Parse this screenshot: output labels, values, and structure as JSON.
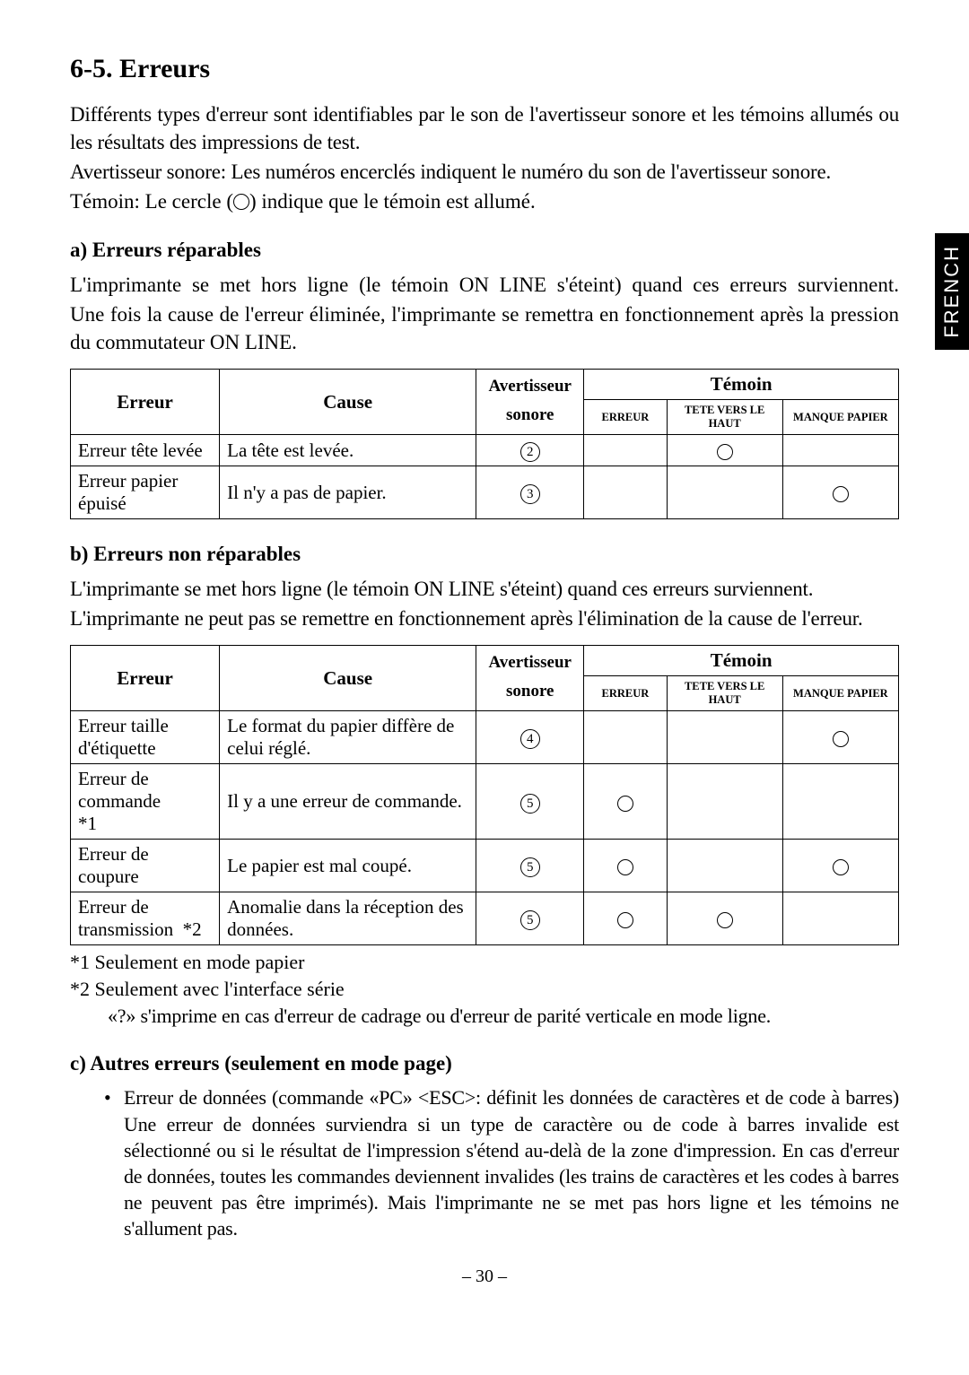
{
  "side_tab": "FRENCH",
  "section_title": "6-5. Erreurs",
  "intro": {
    "p1": "Différents types d'erreur sont identifiables par le son de l'avertisseur sonore et les témoins allumés ou les résultats des impressions de test.",
    "p2": "Avertisseur sonore: Les numéros encerclés indiquent le numéro du son de l'avertisseur sonore.",
    "p3_prefix": "Témoin: Le cercle (",
    "p3_suffix": ") indique que le témoin est allumé."
  },
  "section_a": {
    "heading": "a) Erreurs réparables",
    "p1": "L'imprimante se met hors ligne (le témoin ON LINE s'éteint) quand ces erreurs surviennent.",
    "p2": "Une fois la cause de l'erreur éliminée, l'imprimante se remettra en fonctionnement après la pression du commutateur ON LINE.",
    "table": {
      "headers": {
        "erreur": "Erreur",
        "cause": "Cause",
        "buzzer_top": "Avertisseur",
        "buzzer_bot": "sonore",
        "temoin": "Témoin",
        "t1": "ERREUR",
        "t2": "TETE VERS LE HAUT",
        "t3": "MANQUE PAPIER"
      },
      "rows": [
        {
          "erreur": "Erreur tête levée",
          "cause": "La tête est levée.",
          "buzzer": "2",
          "led_erreur": false,
          "led_tete": true,
          "led_papier": false
        },
        {
          "erreur": "Erreur papier épuisé",
          "cause": "Il n'y a pas de papier.",
          "buzzer": "3",
          "led_erreur": false,
          "led_tete": false,
          "led_papier": true
        }
      ]
    }
  },
  "section_b": {
    "heading": "b) Erreurs non réparables",
    "p1": "L'imprimante se met hors ligne (le témoin ON LINE s'éteint) quand ces erreurs surviennent.",
    "p2": "L'imprimante ne peut pas se remettre en fonctionnement après l'élimination de la cause de l'erreur.",
    "table": {
      "headers": {
        "erreur": "Erreur",
        "cause": "Cause",
        "buzzer_top": "Avertisseur",
        "buzzer_bot": "sonore",
        "temoin": "Témoin",
        "t1": "ERREUR",
        "t2": "TETE VERS LE HAUT",
        "t3": "MANQUE PAPIER"
      },
      "rows": [
        {
          "erreur": "Erreur taille d'étiquette",
          "cause": "Le format du papier diffère de celui réglé.",
          "buzzer": "4",
          "led_erreur": false,
          "led_tete": false,
          "led_papier": true
        },
        {
          "erreur": "Erreur de commande  *1",
          "cause": "Il y a une erreur de commande.",
          "buzzer": "5",
          "led_erreur": true,
          "led_tete": false,
          "led_papier": false
        },
        {
          "erreur": "Erreur de coupure",
          "cause": "Le papier est mal coupé.",
          "buzzer": "5",
          "led_erreur": true,
          "led_tete": false,
          "led_papier": true
        },
        {
          "erreur": "Erreur de transmission *2",
          "cause": "Anomalie dans la réception des données.",
          "buzzer": "5",
          "led_erreur": true,
          "led_tete": true,
          "led_papier": false
        }
      ]
    },
    "notes": {
      "n1": "*1 Seulement en mode papier",
      "n2": "*2 Seulement avec l'interface série",
      "n2b": "«?» s'imprime en cas d'erreur de cadrage ou d'erreur de parité verticale en mode ligne."
    }
  },
  "section_c": {
    "heading": "c) Autres erreurs (seulement en mode page)",
    "bullet": "Erreur de données (commande «PC» <ESC>: définit les données de caractères et de code à barres) Une erreur de données surviendra si un type de caractère ou de code à barres invalide est sélectionné ou si le résultat de l'impression s'étend au-delà de la zone d'impression. En cas d'erreur de données, toutes les commandes deviennent invalides (les trains de caractères et les codes à barres ne peuvent pas être imprimés). Mais l'imprimante ne se met pas hors ligne et les témoins ne s'allument pas."
  },
  "page_number": "– 30 –",
  "style": {
    "col_widths_a": [
      "18%",
      "31%",
      "13%",
      "11%",
      "14%",
      "13%"
    ],
    "col_widths_b": [
      "18%",
      "31%",
      "13%",
      "11%",
      "14%",
      "13%"
    ]
  }
}
